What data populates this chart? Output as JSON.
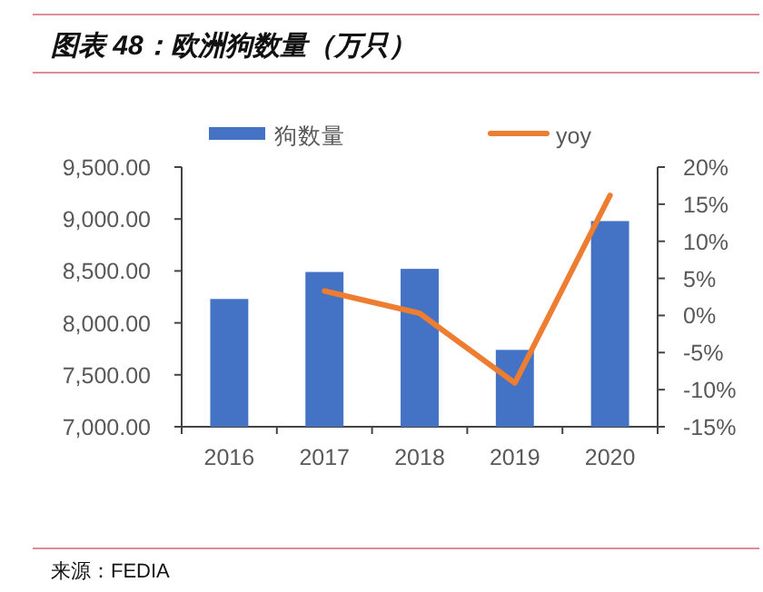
{
  "chart_data": {
    "type": "bar",
    "title": "图表 48：欧洲狗数量（万只）",
    "categories": [
      "2016",
      "2017",
      "2018",
      "2019",
      "2020"
    ],
    "series": [
      {
        "name": "狗数量",
        "color": "#4472c4",
        "values": [
          8230,
          8490,
          8520,
          7740,
          8980
        ]
      },
      {
        "name": "yoy",
        "type": "line",
        "axis": "y2",
        "color": "#ed7d31",
        "values": [
          null,
          3.3,
          0.3,
          -9.1,
          16.2
        ]
      }
    ],
    "ylim": [
      7000,
      9500
    ],
    "yticks": [
      {
        "value": 7000,
        "label": "7,000.00"
      },
      {
        "value": 7500,
        "label": "7,500.00"
      },
      {
        "value": 8000,
        "label": "8,000.00"
      },
      {
        "value": 8500,
        "label": "8,500.00"
      },
      {
        "value": 9000,
        "label": "9,000.00"
      },
      {
        "value": 9500,
        "label": "9,500.00"
      }
    ],
    "y2lim": [
      -15,
      20
    ],
    "y2ticks": [
      {
        "value": -15,
        "label": "-15%"
      },
      {
        "value": -10,
        "label": "-10%"
      },
      {
        "value": -5,
        "label": "-5%"
      },
      {
        "value": 0,
        "label": "0%"
      },
      {
        "value": 5,
        "label": "5%"
      },
      {
        "value": 10,
        "label": "10%"
      },
      {
        "value": 15,
        "label": "15%"
      },
      {
        "value": 20,
        "label": "20%"
      }
    ],
    "legend": "top",
    "annotations": [
      "来源：FEDIA"
    ]
  }
}
